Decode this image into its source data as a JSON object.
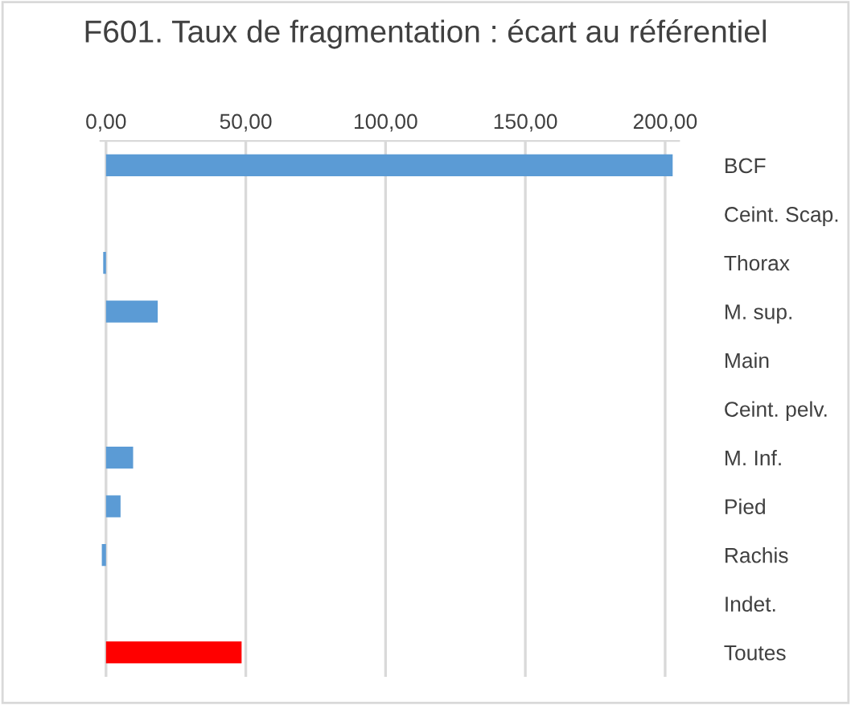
{
  "chart_data": {
    "type": "bar",
    "orientation": "horizontal",
    "title": "F601. Taux de fragmentation : écart au référentiel",
    "categories": [
      "BCF",
      "Ceint. Scap.",
      "Thorax",
      "M. sup.",
      "Main",
      "Ceint. pelv.",
      "M. Inf.",
      "Pied",
      "Rachis",
      "Indet.",
      "Toutes"
    ],
    "values": [
      202.7,
      0,
      -1,
      18.5,
      0,
      0,
      9.7,
      5.2,
      -1.5,
      0,
      48.5
    ],
    "colors": [
      "#5b9bd5",
      "#5b9bd5",
      "#5b9bd5",
      "#5b9bd5",
      "#5b9bd5",
      "#5b9bd5",
      "#5b9bd5",
      "#5b9bd5",
      "#5b9bd5",
      "#5b9bd5",
      "#ff0000"
    ],
    "xlim": [
      -2,
      205
    ],
    "xticks": [
      {
        "value": 0,
        "label": "0,00"
      },
      {
        "value": 50,
        "label": "50,00"
      },
      {
        "value": 100,
        "label": "100,00"
      },
      {
        "value": 150,
        "label": "150,00"
      },
      {
        "value": 200,
        "label": "200,00"
      }
    ],
    "grid": "x",
    "legend": false
  }
}
